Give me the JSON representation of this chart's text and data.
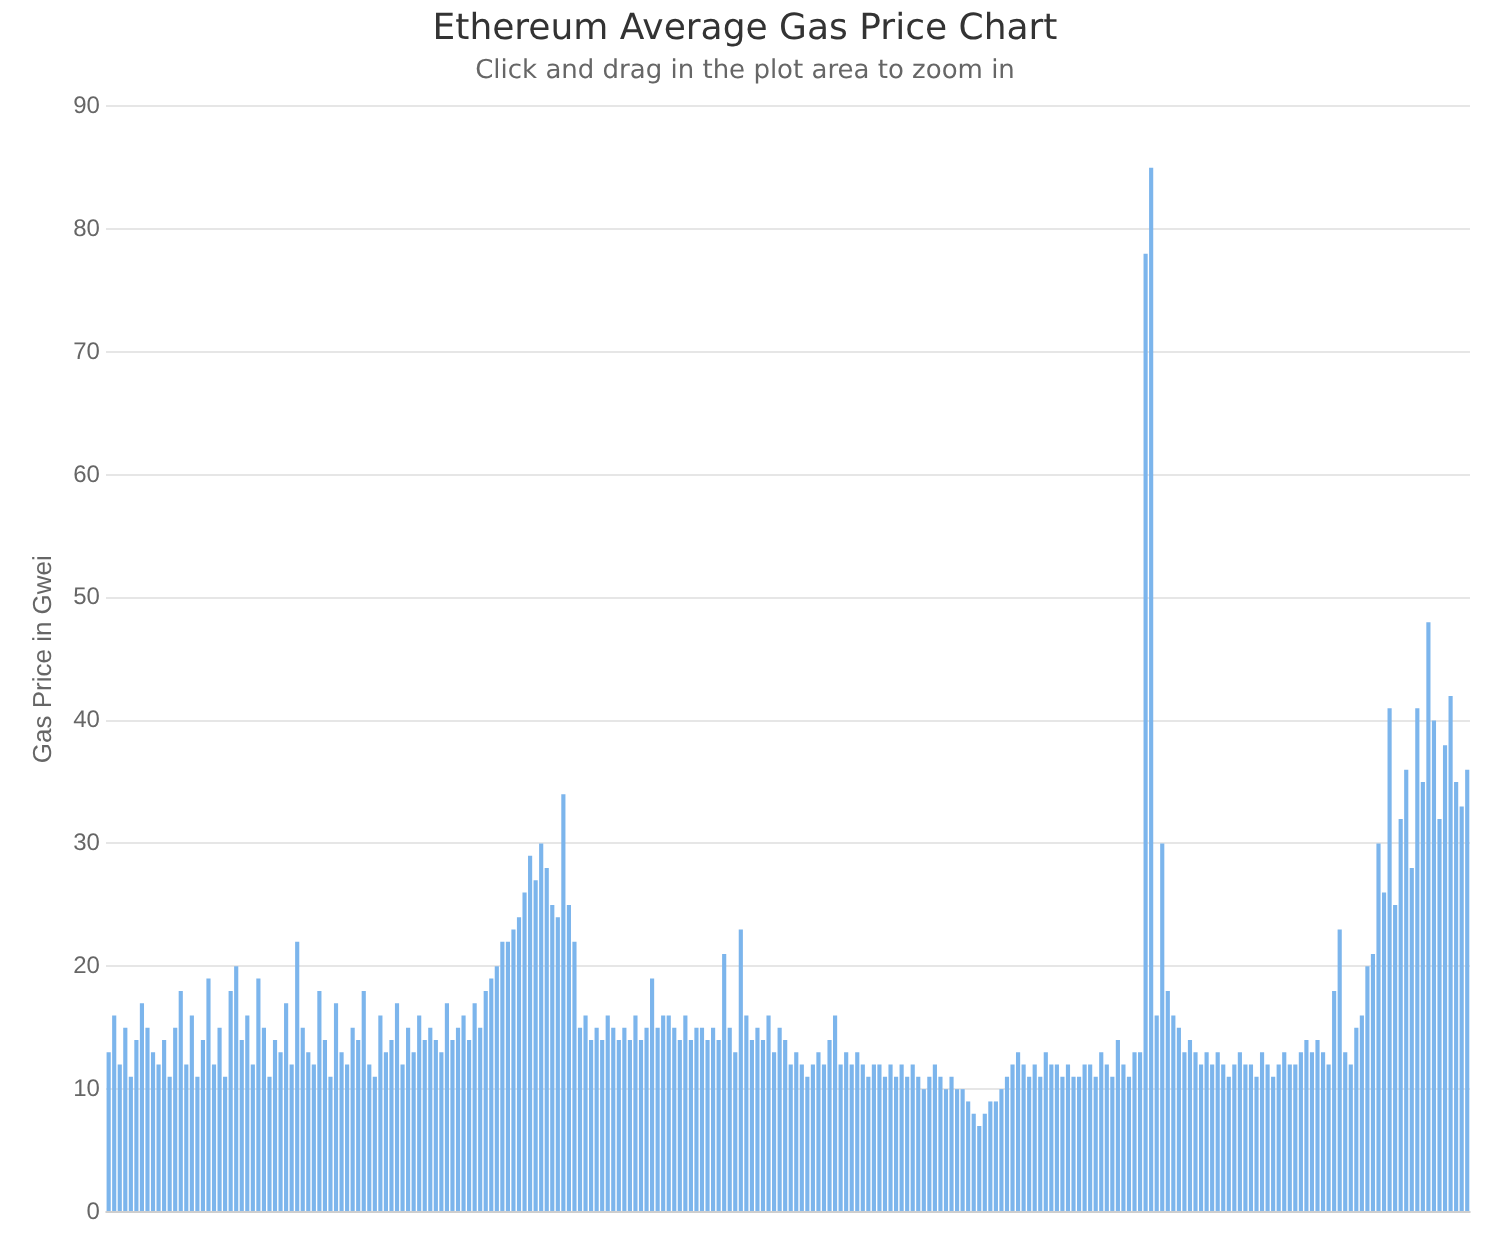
{
  "chart_data": {
    "type": "bar",
    "title": "Ethereum Average Gas Price Chart",
    "subtitle": "Click and drag in the plot area to zoom in",
    "ylabel": "Gas Price in Gwei",
    "categories": [
      null,
      null,
      null,
      null,
      null,
      null,
      null,
      null,
      null,
      null,
      null,
      null,
      null,
      null,
      null,
      null,
      null,
      null,
      null,
      null,
      null,
      null,
      null,
      null,
      null,
      null,
      null,
      null,
      null,
      null,
      null,
      null,
      null,
      null,
      null,
      null,
      null,
      null,
      null,
      null,
      null,
      null,
      null,
      null,
      null,
      null,
      null,
      null,
      null,
      null,
      null,
      null,
      null,
      null,
      null,
      null,
      null,
      null,
      null,
      null,
      null,
      null,
      null,
      null,
      null,
      null,
      null,
      null,
      null,
      null,
      null,
      null,
      null,
      null,
      null,
      null,
      null,
      null,
      null,
      null,
      null,
      null,
      null,
      null,
      null,
      null,
      null,
      null,
      null,
      null,
      null,
      null,
      null,
      null,
      null,
      null,
      null,
      null,
      null,
      null,
      null,
      null,
      null,
      null,
      null,
      null,
      null,
      null,
      null,
      null,
      null,
      null,
      null,
      null,
      null,
      null,
      null,
      null,
      null,
      null,
      null,
      null,
      null,
      null,
      null,
      null,
      null,
      null,
      null,
      null,
      null,
      null,
      null,
      null,
      null,
      null,
      null,
      null,
      null,
      null,
      null,
      null,
      null,
      null,
      null,
      null,
      null,
      null,
      null,
      null,
      null,
      null,
      null,
      null,
      null,
      null,
      null,
      null,
      null,
      null,
      null,
      null,
      null,
      null,
      null,
      null,
      null,
      null,
      null,
      null,
      null,
      null,
      null,
      null,
      null,
      null,
      null,
      null,
      null,
      null,
      null,
      null,
      null,
      null,
      null,
      null,
      null,
      null,
      null,
      null,
      null,
      null,
      null,
      null,
      null,
      null,
      null,
      null,
      null,
      null,
      null,
      null,
      null,
      null,
      null,
      null,
      null,
      null,
      null,
      null,
      null,
      null,
      null,
      null,
      null,
      null,
      null,
      null,
      null,
      null,
      null,
      null,
      null,
      null,
      null,
      null,
      null,
      null,
      null,
      null,
      null,
      null,
      null,
      null,
      null,
      null,
      null,
      null,
      null,
      null,
      null,
      null,
      null,
      null,
      null,
      null
    ],
    "values": [
      13,
      16,
      12,
      15,
      11,
      14,
      17,
      15,
      13,
      12,
      14,
      11,
      15,
      18,
      12,
      16,
      11,
      14,
      19,
      12,
      15,
      11,
      18,
      20,
      14,
      16,
      12,
      19,
      15,
      11,
      14,
      13,
      17,
      12,
      22,
      15,
      13,
      12,
      18,
      14,
      11,
      17,
      13,
      12,
      15,
      14,
      18,
      12,
      11,
      16,
      13,
      14,
      17,
      12,
      15,
      13,
      16,
      14,
      15,
      14,
      13,
      17,
      14,
      15,
      16,
      14,
      17,
      15,
      18,
      19,
      20,
      22,
      22,
      23,
      24,
      26,
      29,
      27,
      30,
      28,
      25,
      24,
      34,
      25,
      22,
      15,
      16,
      14,
      15,
      14,
      16,
      15,
      14,
      15,
      14,
      16,
      14,
      15,
      19,
      15,
      16,
      16,
      15,
      14,
      16,
      14,
      15,
      15,
      14,
      15,
      14,
      21,
      15,
      13,
      23,
      16,
      14,
      15,
      14,
      16,
      13,
      15,
      14,
      12,
      13,
      12,
      11,
      12,
      13,
      12,
      14,
      16,
      12,
      13,
      12,
      13,
      12,
      11,
      12,
      12,
      11,
      12,
      11,
      12,
      11,
      12,
      11,
      10,
      11,
      12,
      11,
      10,
      11,
      10,
      10,
      9,
      8,
      7,
      8,
      9,
      9,
      10,
      11,
      12,
      13,
      12,
      11,
      12,
      11,
      13,
      12,
      12,
      11,
      12,
      11,
      11,
      12,
      12,
      11,
      13,
      12,
      11,
      14,
      12,
      11,
      13,
      13,
      78,
      85,
      16,
      30,
      18,
      16,
      15,
      13,
      14,
      13,
      12,
      13,
      12,
      13,
      12,
      11,
      12,
      13,
      12,
      12,
      11,
      13,
      12,
      11,
      12,
      13,
      12,
      12,
      13,
      14,
      13,
      14,
      13,
      12,
      18,
      23,
      13,
      12,
      15,
      16,
      20,
      21,
      30,
      26,
      41,
      25,
      32,
      36,
      28,
      41,
      35,
      48,
      40,
      32,
      38,
      42,
      35,
      33,
      36
    ],
    "color": "#7cb5ec",
    "ylim": [
      0,
      90
    ],
    "yticks": [
      0,
      10,
      20,
      30,
      40,
      50,
      60,
      70,
      80,
      90
    ],
    "grid": "y",
    "legend": false,
    "tick_labels": "y"
  }
}
